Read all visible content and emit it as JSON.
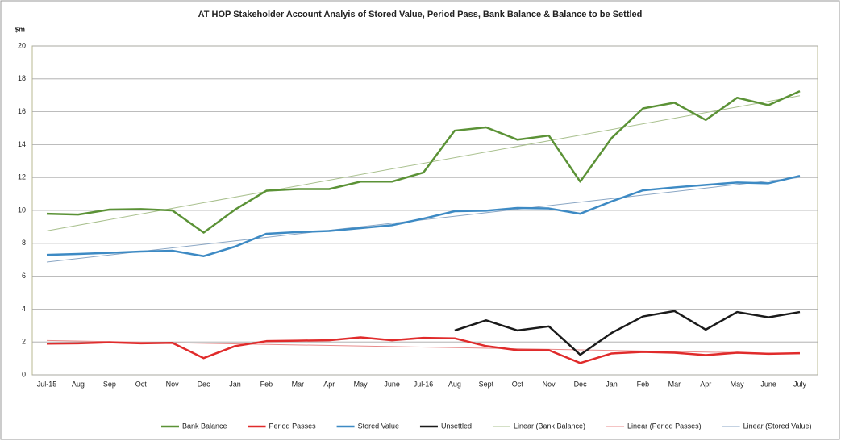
{
  "chart_data": {
    "type": "line",
    "title": "AT HOP Stakeholder Account Analyis of Stored Value, Period Pass, Bank Balance & Balance to be Settled",
    "y_label": "$m",
    "categories": [
      "Jul-15",
      "Aug",
      "Sep",
      "Oct",
      "Nov",
      "Dec",
      "Jan",
      "Feb",
      "Mar",
      "Apr",
      "May",
      "June",
      "Jul-16",
      "Aug",
      "Sept",
      "Oct",
      "Nov",
      "Dec",
      "Jan",
      "Feb",
      "Mar",
      "Apr",
      "May",
      "June",
      "July"
    ],
    "series": [
      {
        "name": "Bank Balance",
        "color": "#5b9236",
        "values": [
          9.8,
          9.75,
          10.05,
          10.08,
          10.0,
          8.65,
          10.05,
          11.2,
          11.3,
          11.3,
          11.75,
          11.75,
          12.3,
          14.85,
          15.05,
          14.3,
          14.55,
          11.75,
          14.4,
          16.2,
          16.55,
          15.5,
          16.85,
          16.4,
          17.25
        ]
      },
      {
        "name": "Period Passes",
        "color": "#e02b2b",
        "values": [
          1.9,
          1.92,
          1.98,
          1.92,
          1.95,
          1.02,
          1.75,
          2.05,
          2.08,
          2.1,
          2.28,
          2.1,
          2.25,
          2.22,
          1.75,
          1.5,
          1.5,
          0.72,
          1.3,
          1.4,
          1.35,
          1.2,
          1.35,
          1.28,
          1.32
        ]
      },
      {
        "name": "Stored Value",
        "color": "#3d8ac4",
        "values": [
          7.3,
          7.35,
          7.42,
          7.5,
          7.55,
          7.22,
          7.8,
          8.58,
          8.68,
          8.75,
          8.92,
          9.1,
          9.5,
          9.95,
          9.98,
          10.15,
          10.12,
          9.8,
          10.55,
          11.22,
          11.4,
          11.55,
          11.7,
          11.65,
          12.1
        ]
      },
      {
        "name": "Unsettled",
        "color": "#1a1a1a",
        "values": [
          null,
          null,
          null,
          null,
          null,
          null,
          null,
          null,
          null,
          null,
          null,
          null,
          null,
          2.7,
          3.32,
          2.7,
          2.95,
          1.22,
          2.55,
          3.55,
          3.88,
          2.75,
          3.82,
          3.5,
          3.82
        ]
      }
    ],
    "trendlines": [
      {
        "name": "Linear (Bank Balance)",
        "color": "#a9c08e",
        "series": 0
      },
      {
        "name": "Linear (Period Passes)",
        "color": "#e88a8a",
        "series": 1
      },
      {
        "name": "Linear (Stored Value)",
        "color": "#8aa6c4",
        "series": 2
      }
    ],
    "ylim": [
      0,
      20
    ],
    "yticks": [
      0,
      2,
      4,
      6,
      8,
      10,
      12,
      14,
      16,
      18,
      20
    ],
    "grid": true,
    "legend": "bottom"
  }
}
